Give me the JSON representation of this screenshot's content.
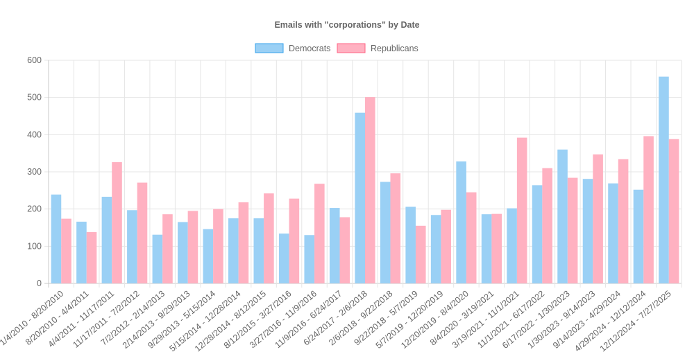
{
  "chart_data": {
    "type": "bar",
    "title": "Emails with \"corporations\" by Date",
    "xlabel": "",
    "ylabel": "",
    "ylim": [
      0,
      600
    ],
    "yticks": [
      0,
      100,
      200,
      300,
      400,
      500,
      600
    ],
    "grid": true,
    "legend_position": "top",
    "categories": [
      "1/4/2010 - 8/20/2010",
      "8/20/2010 - 4/4/2011",
      "4/4/2011 - 11/17/2011",
      "11/17/2011 - 7/2/2012",
      "7/2/2012 - 2/14/2013",
      "2/14/2013 - 9/29/2013",
      "9/29/2013 - 5/15/2014",
      "5/15/2014 - 12/28/2014",
      "12/28/2014 - 8/12/2015",
      "8/12/2015 - 3/27/2016",
      "3/27/2016 - 11/9/2016",
      "11/9/2016 - 6/24/2017",
      "6/24/2017 - 2/6/2018",
      "2/6/2018 - 9/22/2018",
      "9/22/2018 - 5/7/2019",
      "5/7/2019 - 12/20/2019",
      "12/20/2019 - 8/4/2020",
      "8/4/2020 - 3/19/2021",
      "3/19/2021 - 11/1/2021",
      "11/1/2021 - 6/17/2022",
      "6/17/2022 - 1/30/2023",
      "1/30/2023 - 9/14/2023",
      "9/14/2023 - 4/29/2024",
      "4/29/2024 - 12/12/2024",
      "12/12/2024 - 7/27/2025"
    ],
    "series": [
      {
        "name": "Democrats",
        "color": "#9ad0f5",
        "border": "#36a2eb",
        "values": [
          239,
          166,
          233,
          197,
          131,
          165,
          146,
          175,
          175,
          134,
          130,
          203,
          459,
          273,
          206,
          184,
          328,
          186,
          202,
          264,
          360,
          281,
          269,
          252,
          556
        ]
      },
      {
        "name": "Republicans",
        "color": "#ffb1c1",
        "border": "#ff6384",
        "values": [
          174,
          138,
          326,
          271,
          186,
          195,
          200,
          218,
          242,
          228,
          268,
          178,
          501,
          296,
          155,
          198,
          245,
          187,
          392,
          310,
          284,
          347,
          334,
          396,
          388
        ]
      }
    ]
  }
}
